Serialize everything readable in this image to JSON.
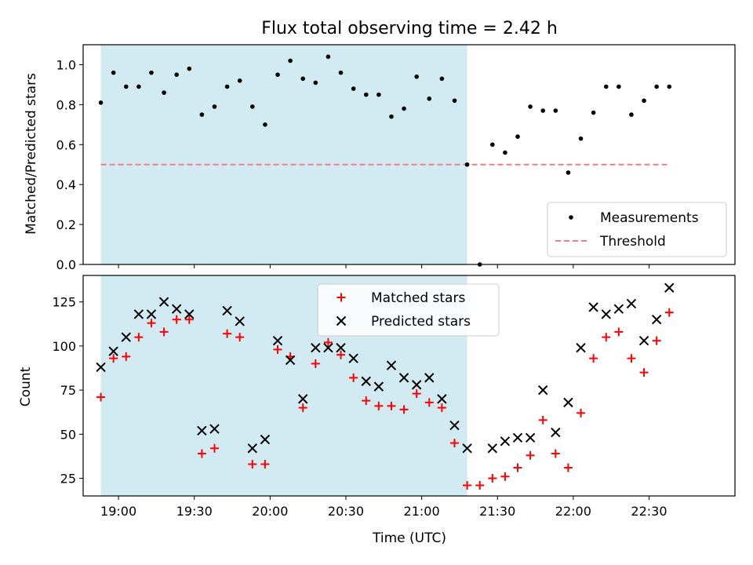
{
  "title": "Flux total observing time = 2.42 h",
  "colors": {
    "shade": "#add8e6",
    "measurement": "#000000",
    "threshold": "#f08080",
    "matched": "#ff0000",
    "predicted": "#000000"
  },
  "chart_data": [
    {
      "type": "scatter",
      "panel": "top",
      "xlabel": "",
      "ylabel": "Matched/Predicted stars",
      "ylim": [
        0,
        1.1
      ],
      "yticks": [
        0.0,
        0.2,
        0.4,
        0.6,
        0.8,
        1.0
      ],
      "ytick_labels": [
        "0.0",
        "0.2",
        "0.4",
        "0.6",
        "0.8",
        "1.0"
      ],
      "legend_position": "lower-right",
      "shaded_region": [
        "18:53",
        "21:18"
      ],
      "series": [
        {
          "name": "Measurements",
          "marker": "dot",
          "x": [
            "18:53",
            "18:58",
            "19:03",
            "19:08",
            "19:13",
            "19:18",
            "19:23",
            "19:28",
            "19:33",
            "19:38",
            "19:43",
            "19:48",
            "19:53",
            "19:58",
            "20:03",
            "20:08",
            "20:13",
            "20:18",
            "20:23",
            "20:28",
            "20:33",
            "20:38",
            "20:43",
            "20:48",
            "20:53",
            "20:58",
            "21:03",
            "21:08",
            "21:13",
            "21:18",
            "21:23",
            "21:28",
            "21:33",
            "21:38",
            "21:43",
            "21:48",
            "21:53",
            "21:58",
            "22:03",
            "22:08",
            "22:13",
            "22:18",
            "22:23",
            "22:28",
            "22:33",
            "22:38"
          ],
          "y": [
            0.81,
            0.96,
            0.89,
            0.89,
            0.96,
            0.86,
            0.95,
            0.98,
            0.75,
            0.79,
            0.89,
            0.92,
            0.79,
            0.7,
            0.95,
            1.02,
            0.93,
            0.91,
            1.04,
            0.96,
            0.88,
            0.85,
            0.85,
            0.74,
            0.78,
            0.94,
            0.83,
            0.93,
            0.82,
            0.5,
            0.0,
            0.6,
            0.56,
            0.64,
            0.79,
            0.77,
            0.77,
            0.46,
            0.63,
            0.76,
            0.89,
            0.89,
            0.75,
            0.82,
            0.89,
            0.89
          ]
        },
        {
          "name": "Threshold",
          "style": "dashed",
          "x": [
            "18:53",
            "22:38"
          ],
          "y": [
            0.5,
            0.5
          ]
        }
      ]
    },
    {
      "type": "scatter",
      "panel": "bottom",
      "xlabel": "Time (UTC)",
      "ylabel": "Count",
      "ylim": [
        15,
        140
      ],
      "yticks": [
        25,
        50,
        75,
        100,
        125
      ],
      "ytick_labels": [
        "25",
        "50",
        "75",
        "100",
        "125"
      ],
      "xlim": [
        "18:46",
        "23:04"
      ],
      "xticks": [
        "19:00",
        "19:30",
        "20:00",
        "20:30",
        "21:00",
        "21:30",
        "22:00",
        "22:30"
      ],
      "legend_position": "upper-center",
      "shaded_region": [
        "18:53",
        "21:18"
      ],
      "series": [
        {
          "name": "Matched stars",
          "marker": "plus",
          "x": [
            "18:53",
            "18:58",
            "19:03",
            "19:08",
            "19:13",
            "19:18",
            "19:23",
            "19:28",
            "19:33",
            "19:38",
            "19:43",
            "19:48",
            "19:53",
            "19:58",
            "20:03",
            "20:08",
            "20:13",
            "20:18",
            "20:23",
            "20:28",
            "20:33",
            "20:38",
            "20:43",
            "20:48",
            "20:53",
            "20:58",
            "21:03",
            "21:08",
            "21:13",
            "21:18",
            "21:23",
            "21:28",
            "21:33",
            "21:38",
            "21:43",
            "21:48",
            "21:53",
            "21:58",
            "22:03",
            "22:08",
            "22:13",
            "22:18",
            "22:23",
            "22:28",
            "22:33",
            "22:38"
          ],
          "y": [
            71,
            93,
            94,
            105,
            113,
            108,
            115,
            115,
            39,
            42,
            107,
            105,
            33,
            33,
            98,
            94,
            65,
            90,
            102,
            95,
            82,
            69,
            66,
            66,
            64,
            73,
            68,
            65,
            45,
            21,
            21,
            25,
            26,
            31,
            38,
            58,
            39,
            31,
            62,
            93,
            105,
            108,
            93,
            85,
            103,
            119
          ]
        },
        {
          "name": "Predicted stars",
          "marker": "x",
          "x": [
            "18:53",
            "18:58",
            "19:03",
            "19:08",
            "19:13",
            "19:18",
            "19:23",
            "19:28",
            "19:33",
            "19:38",
            "19:43",
            "19:48",
            "19:53",
            "19:58",
            "20:03",
            "20:08",
            "20:13",
            "20:18",
            "20:23",
            "20:28",
            "20:33",
            "20:38",
            "20:43",
            "20:48",
            "20:53",
            "20:58",
            "21:03",
            "21:08",
            "21:13",
            "21:18",
            "21:28",
            "21:33",
            "21:38",
            "21:43",
            "21:48",
            "21:53",
            "21:58",
            "22:03",
            "22:08",
            "22:13",
            "22:18",
            "22:23",
            "22:28",
            "22:33",
            "22:38"
          ],
          "y": [
            88,
            97,
            105,
            118,
            118,
            125,
            121,
            118,
            52,
            53,
            120,
            114,
            42,
            47,
            103,
            92,
            70,
            99,
            99,
            99,
            93,
            80,
            77,
            89,
            82,
            78,
            82,
            70,
            55,
            42,
            42,
            46,
            48,
            48,
            75,
            51,
            68,
            99,
            122,
            118,
            121,
            124,
            103,
            115,
            133
          ]
        }
      ]
    }
  ]
}
